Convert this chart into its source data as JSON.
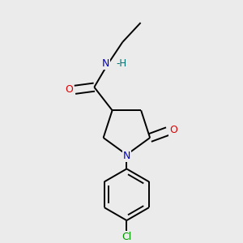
{
  "background_color": "#ebebeb",
  "bond_color": "#000000",
  "atom_colors": {
    "N": "#0000cc",
    "O": "#dd0000",
    "Cl": "#009900",
    "H": "#007070",
    "C": "#000000"
  },
  "figsize": [
    3.0,
    3.0
  ],
  "dpi": 100,
  "bond_lw": 1.4,
  "font_size": 9
}
